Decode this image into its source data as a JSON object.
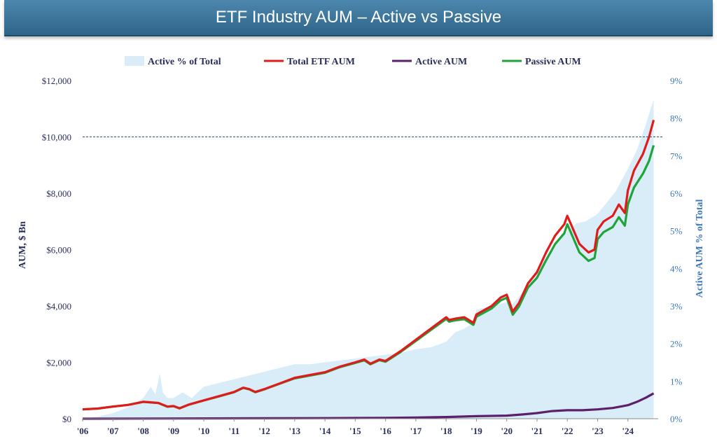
{
  "header": {
    "title": "ETF Industry AUM – Active vs Passive"
  },
  "chart_data": {
    "type": "line",
    "title": "ETF Industry AUM – Active vs Passive",
    "ylabel": "AUM, $ Bn",
    "y2label": "Active AUM % of Total",
    "ylim": [
      0,
      12000
    ],
    "y2lim": [
      0,
      9
    ],
    "yticks": [
      "$0",
      "$2,000",
      "$4,000",
      "$6,000",
      "$8,000",
      "$10,000",
      "$12,000"
    ],
    "y2ticks": [
      "0%",
      "1%",
      "2%",
      "3%",
      "4%",
      "5%",
      "6%",
      "7%",
      "8%",
      "9%"
    ],
    "xticks": [
      "'06",
      "'07",
      "'08",
      "'09",
      "'10",
      "'11",
      "'12",
      "'13",
      "'14",
      "'15",
      "'16",
      "'17",
      "'18",
      "'19",
      "'20",
      "'21",
      "'22",
      "'23",
      "'24"
    ],
    "reference_line": 10000,
    "legend_position": "top",
    "colors": {
      "active_pct": "#d9edf8",
      "total": "#e01b1b",
      "active": "#5b1f6b",
      "passive": "#1fa33a",
      "left_axis": "#2b2f5c",
      "right_axis": "#3d78b8",
      "refline": "#2f4d7d"
    },
    "series": [
      {
        "name": "Active % of Total",
        "type": "area",
        "axis": "right",
        "x": [
          2006.0,
          2006.5,
          2007.0,
          2007.5,
          2008.0,
          2008.25,
          2008.4,
          2008.55,
          2008.65,
          2008.8,
          2009.0,
          2009.3,
          2009.6,
          2010.0,
          2010.5,
          2011.0,
          2011.5,
          2012.0,
          2012.5,
          2013.0,
          2013.5,
          2014.0,
          2014.5,
          2015.0,
          2015.5,
          2016.0,
          2016.5,
          2017.0,
          2017.5,
          2018.0,
          2018.3,
          2018.6,
          2018.9,
          2019.0,
          2019.5,
          2020.0,
          2020.2,
          2020.4,
          2020.6,
          2020.8,
          2021.0,
          2021.3,
          2021.6,
          2022.0,
          2022.3,
          2022.6,
          2023.0,
          2023.3,
          2023.6,
          2024.0,
          2024.3,
          2024.6,
          2024.85
        ],
        "y": [
          0.0,
          0.05,
          0.15,
          0.3,
          0.55,
          0.85,
          0.65,
          1.2,
          0.7,
          0.55,
          0.55,
          0.7,
          0.55,
          0.85,
          0.95,
          1.05,
          1.15,
          1.25,
          1.35,
          1.45,
          1.45,
          1.5,
          1.55,
          1.6,
          1.65,
          1.7,
          1.75,
          1.85,
          1.9,
          2.05,
          2.3,
          2.4,
          2.55,
          2.9,
          3.0,
          3.1,
          3.05,
          3.25,
          3.45,
          3.7,
          3.9,
          4.3,
          4.6,
          5.0,
          5.2,
          5.25,
          5.45,
          5.75,
          6.05,
          6.65,
          7.15,
          7.85,
          8.5
        ]
      },
      {
        "name": "Total ETF AUM",
        "type": "line",
        "axis": "left",
        "x": [
          2006.0,
          2006.5,
          2007.0,
          2007.5,
          2008.0,
          2008.5,
          2008.8,
          2009.0,
          2009.2,
          2009.5,
          2010.0,
          2010.5,
          2011.0,
          2011.3,
          2011.5,
          2011.7,
          2012.0,
          2012.5,
          2013.0,
          2013.5,
          2014.0,
          2014.5,
          2015.0,
          2015.3,
          2015.5,
          2015.8,
          2016.0,
          2016.5,
          2017.0,
          2017.5,
          2018.0,
          2018.1,
          2018.3,
          2018.6,
          2018.9,
          2019.0,
          2019.5,
          2019.8,
          2020.0,
          2020.2,
          2020.4,
          2020.7,
          2021.0,
          2021.3,
          2021.6,
          2021.9,
          2022.0,
          2022.2,
          2022.4,
          2022.7,
          2022.9,
          2023.0,
          2023.2,
          2023.5,
          2023.7,
          2023.9,
          2024.0,
          2024.2,
          2024.5,
          2024.7,
          2024.85
        ],
        "y": [
          330,
          360,
          430,
          490,
          600,
          560,
          430,
          450,
          370,
          500,
          650,
          800,
          950,
          1100,
          1050,
          950,
          1050,
          1250,
          1450,
          1550,
          1650,
          1850,
          2000,
          2100,
          1950,
          2100,
          2050,
          2400,
          2800,
          3200,
          3600,
          3500,
          3550,
          3600,
          3400,
          3700,
          4000,
          4300,
          4400,
          3800,
          4100,
          4800,
          5200,
          5900,
          6500,
          6900,
          7200,
          6700,
          6200,
          5900,
          6000,
          6700,
          7000,
          7200,
          7600,
          7300,
          8100,
          8800,
          9400,
          10000,
          10600
        ]
      },
      {
        "name": "Active AUM",
        "type": "line",
        "axis": "left",
        "x": [
          2006.0,
          2008.0,
          2010.0,
          2012.0,
          2014.0,
          2016.0,
          2017.0,
          2018.0,
          2019.0,
          2020.0,
          2020.5,
          2021.0,
          2021.5,
          2022.0,
          2022.5,
          2023.0,
          2023.5,
          2024.0,
          2024.3,
          2024.6,
          2024.85
        ],
        "y": [
          0,
          5,
          10,
          15,
          20,
          30,
          40,
          60,
          90,
          110,
          150,
          200,
          270,
          300,
          300,
          330,
          380,
          480,
          600,
          750,
          900
        ]
      },
      {
        "name": "Passive AUM",
        "type": "line",
        "axis": "left",
        "x": [
          2006.0,
          2006.5,
          2007.0,
          2007.5,
          2008.0,
          2008.5,
          2008.8,
          2009.0,
          2009.2,
          2009.5,
          2010.0,
          2010.5,
          2011.0,
          2011.3,
          2011.5,
          2011.7,
          2012.0,
          2012.5,
          2013.0,
          2013.5,
          2014.0,
          2014.5,
          2015.0,
          2015.3,
          2015.5,
          2015.8,
          2016.0,
          2016.5,
          2017.0,
          2017.5,
          2018.0,
          2018.1,
          2018.3,
          2018.6,
          2018.9,
          2019.0,
          2019.5,
          2019.8,
          2020.0,
          2020.2,
          2020.4,
          2020.7,
          2021.0,
          2021.3,
          2021.6,
          2021.9,
          2022.0,
          2022.2,
          2022.4,
          2022.7,
          2022.9,
          2023.0,
          2023.2,
          2023.5,
          2023.7,
          2023.9,
          2024.0,
          2024.2,
          2024.5,
          2024.7,
          2024.85
        ],
        "y": [
          330,
          360,
          430,
          490,
          600,
          555,
          425,
          445,
          365,
          495,
          645,
          790,
          940,
          1090,
          1040,
          940,
          1040,
          1240,
          1430,
          1530,
          1630,
          1830,
          1980,
          2070,
          1930,
          2080,
          2020,
          2370,
          2760,
          3150,
          3540,
          3440,
          3490,
          3530,
          3330,
          3620,
          3910,
          4200,
          4290,
          3690,
          3970,
          4650,
          5000,
          5620,
          6200,
          6580,
          6900,
          6400,
          5900,
          5600,
          5700,
          6370,
          6620,
          6800,
          7150,
          6850,
          7600,
          8200,
          8700,
          9150,
          9700
        ]
      }
    ]
  }
}
